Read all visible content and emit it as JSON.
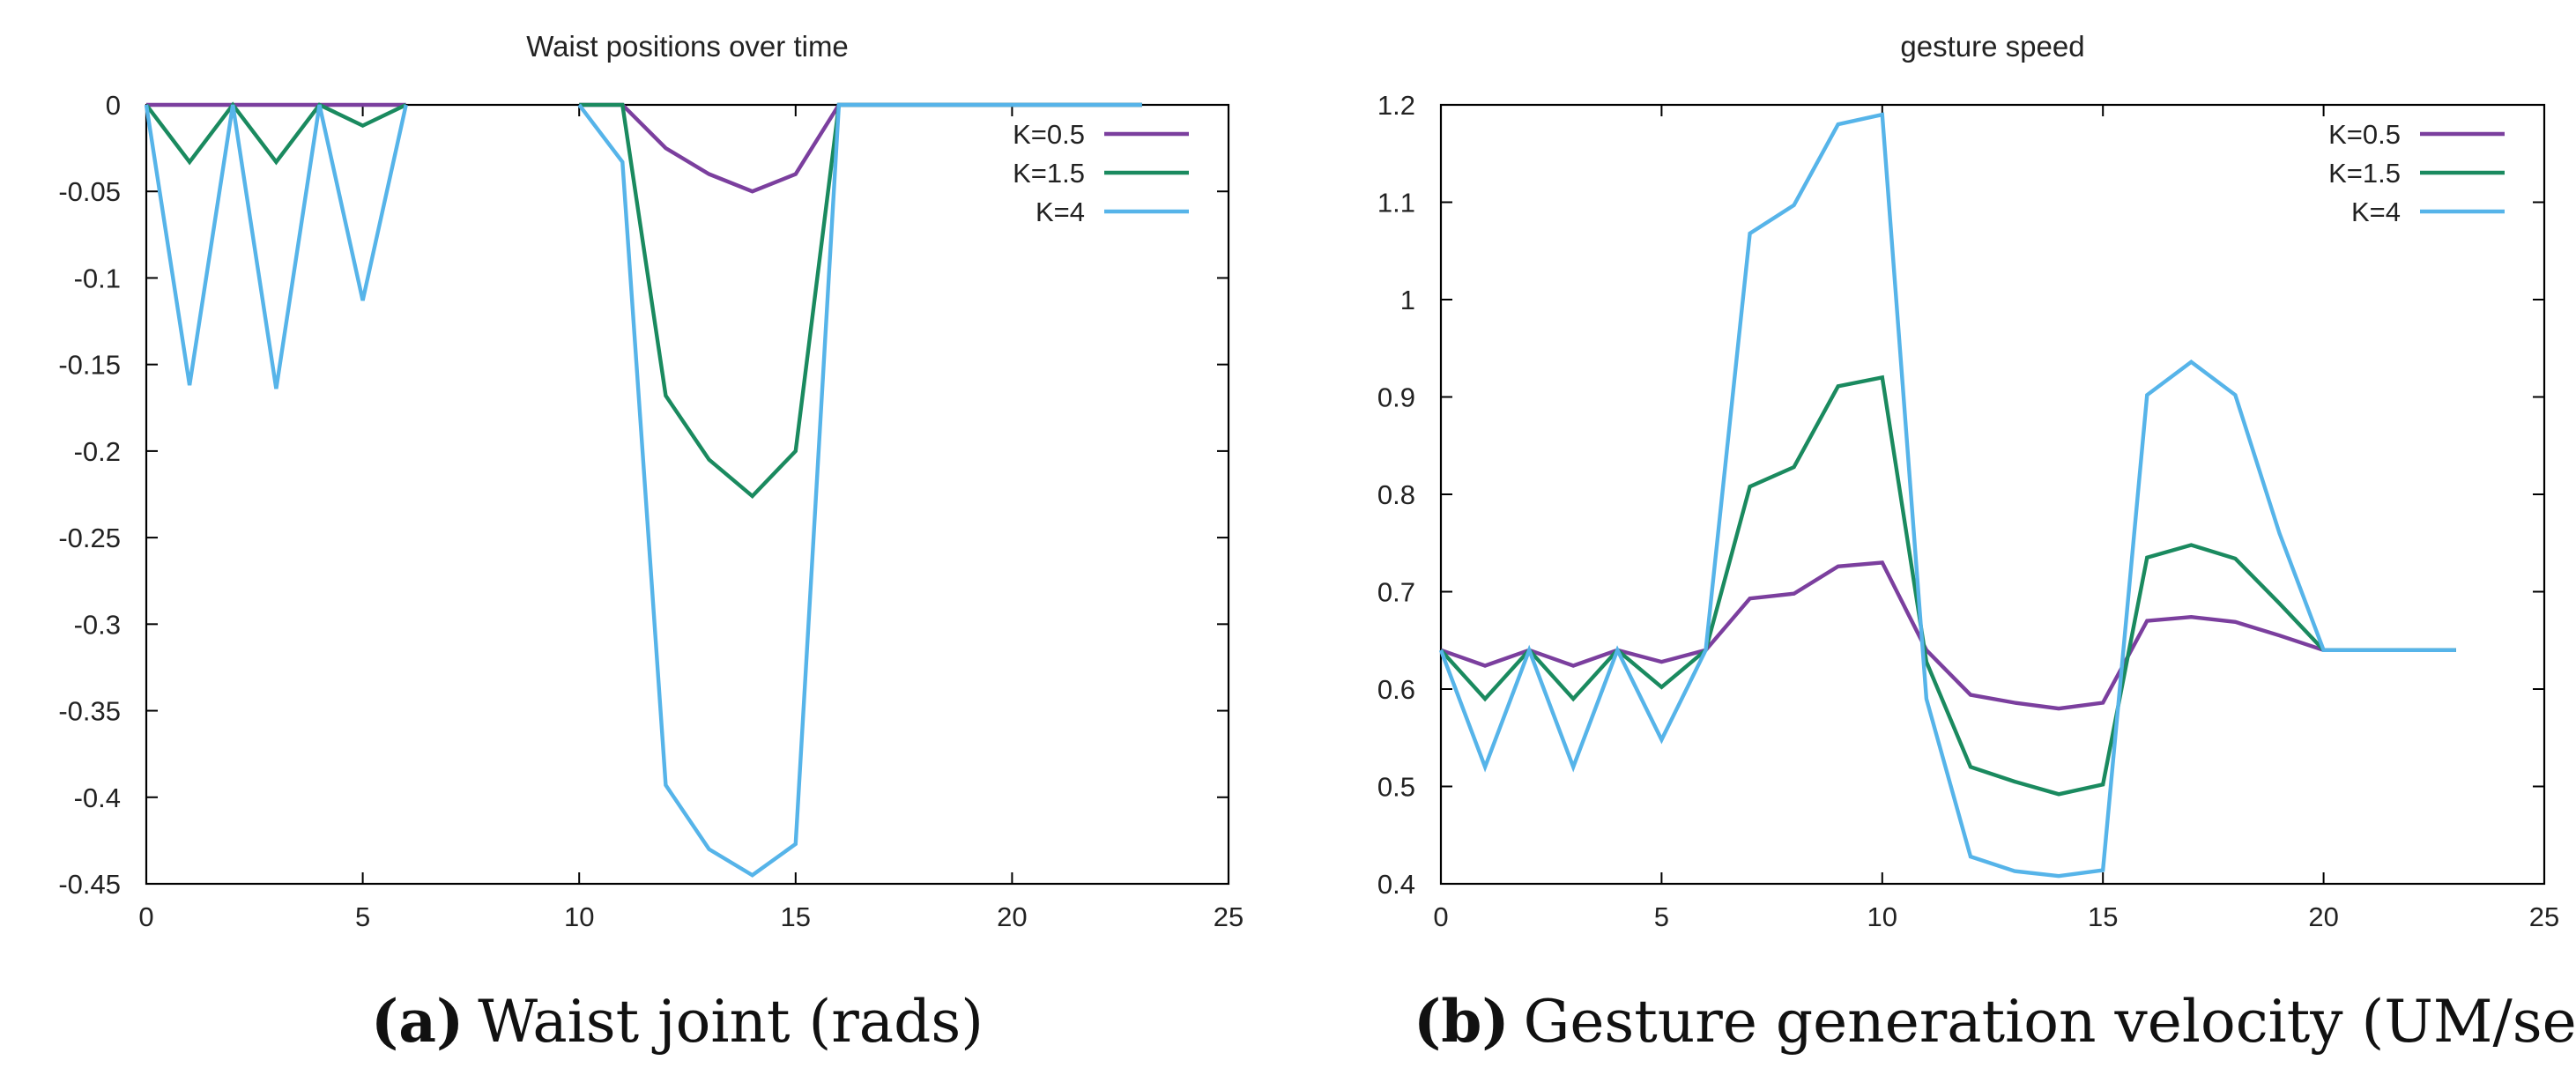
{
  "chart_data": [
    {
      "type": "line",
      "title": "Waist positions over time",
      "xlabel": "",
      "ylabel": "",
      "xlim": [
        0,
        25
      ],
      "ylim": [
        -0.45,
        0
      ],
      "xticks": [
        0,
        5,
        10,
        15,
        20,
        25
      ],
      "yticks": [
        0,
        -0.05,
        -0.1,
        -0.15,
        -0.2,
        -0.25,
        -0.3,
        -0.35,
        -0.4,
        -0.45
      ],
      "grid": false,
      "legend_position": "top-right",
      "series": [
        {
          "name": "K=0.5",
          "color": "#7b3f9e",
          "segments": [
            [
              [
                0,
                0
              ],
              [
                1,
                0
              ],
              [
                2,
                0
              ],
              [
                3,
                0
              ],
              [
                4,
                0
              ],
              [
                5,
                0
              ],
              [
                6,
                0
              ]
            ],
            [
              [
                10,
                0
              ],
              [
                11,
                0
              ],
              [
                12,
                -0.025
              ],
              [
                13,
                -0.04
              ],
              [
                14,
                -0.05
              ],
              [
                15,
                -0.04
              ],
              [
                16,
                0
              ],
              [
                17,
                0
              ],
              [
                18,
                0
              ],
              [
                19,
                0
              ],
              [
                20,
                0
              ],
              [
                21,
                0
              ],
              [
                22,
                0
              ],
              [
                23,
                0
              ]
            ]
          ]
        },
        {
          "name": "K=1.5",
          "color": "#1a8a5f",
          "segments": [
            [
              [
                0,
                0
              ],
              [
                1,
                -0.033
              ],
              [
                2,
                0
              ],
              [
                3,
                -0.033
              ],
              [
                4,
                0
              ],
              [
                5,
                -0.012
              ],
              [
                6,
                0
              ]
            ],
            [
              [
                10,
                0
              ],
              [
                11,
                0
              ],
              [
                12,
                -0.168
              ],
              [
                13,
                -0.205
              ],
              [
                14,
                -0.226
              ],
              [
                15,
                -0.2
              ],
              [
                16,
                0
              ],
              [
                17,
                0
              ],
              [
                18,
                0
              ],
              [
                19,
                0
              ],
              [
                20,
                0
              ],
              [
                21,
                0
              ],
              [
                22,
                0
              ],
              [
                23,
                0
              ]
            ]
          ]
        },
        {
          "name": "K=4",
          "color": "#56b4e9",
          "segments": [
            [
              [
                0,
                0
              ],
              [
                1,
                -0.162
              ],
              [
                2,
                0
              ],
              [
                3,
                -0.164
              ],
              [
                4,
                0
              ],
              [
                5,
                -0.113
              ],
              [
                6,
                0
              ]
            ],
            [
              [
                10,
                0
              ],
              [
                11,
                -0.033
              ],
              [
                12,
                -0.393
              ],
              [
                13,
                -0.43
              ],
              [
                14,
                -0.445
              ],
              [
                15,
                -0.427
              ],
              [
                16,
                0
              ],
              [
                17,
                0
              ],
              [
                18,
                0
              ],
              [
                19,
                0
              ],
              [
                20,
                0
              ],
              [
                21,
                0
              ],
              [
                22,
                0
              ],
              [
                23,
                0
              ]
            ]
          ]
        }
      ]
    },
    {
      "type": "line",
      "title": "gesture speed",
      "xlabel": "",
      "ylabel": "",
      "xlim": [
        0,
        25
      ],
      "ylim": [
        0.4,
        1.2
      ],
      "xticks": [
        0,
        5,
        10,
        15,
        20,
        25
      ],
      "yticks": [
        0.4,
        0.5,
        0.6,
        0.7,
        0.8,
        0.9,
        1,
        1.1,
        1.2
      ],
      "grid": false,
      "legend_position": "top-right",
      "series": [
        {
          "name": "K=0.5",
          "color": "#7b3f9e",
          "segments": [
            [
              [
                0,
                0.64
              ],
              [
                1,
                0.624
              ],
              [
                2,
                0.64
              ],
              [
                3,
                0.624
              ],
              [
                4,
                0.64
              ],
              [
                5,
                0.628
              ],
              [
                6,
                0.64
              ],
              [
                7,
                0.693
              ],
              [
                8,
                0.698
              ],
              [
                9,
                0.726
              ],
              [
                10,
                0.73
              ],
              [
                11,
                0.64
              ],
              [
                12,
                0.594
              ],
              [
                13,
                0.586
              ],
              [
                14,
                0.58
              ],
              [
                15,
                0.586
              ],
              [
                16,
                0.67
              ],
              [
                17,
                0.674
              ],
              [
                18,
                0.669
              ],
              [
                19,
                0.655
              ],
              [
                20,
                0.64
              ],
              [
                21,
                0.64
              ],
              [
                22,
                0.64
              ],
              [
                23,
                0.64
              ]
            ]
          ]
        },
        {
          "name": "K=1.5",
          "color": "#1a8a5f",
          "segments": [
            [
              [
                0,
                0.64
              ],
              [
                1,
                0.59
              ],
              [
                2,
                0.64
              ],
              [
                3,
                0.59
              ],
              [
                4,
                0.64
              ],
              [
                5,
                0.602
              ],
              [
                6,
                0.64
              ],
              [
                7,
                0.808
              ],
              [
                8,
                0.828
              ],
              [
                9,
                0.911
              ],
              [
                10,
                0.92
              ],
              [
                11,
                0.628
              ],
              [
                12,
                0.52
              ],
              [
                13,
                0.505
              ],
              [
                14,
                0.492
              ],
              [
                15,
                0.502
              ],
              [
                16,
                0.735
              ],
              [
                17,
                0.748
              ],
              [
                18,
                0.734
              ],
              [
                19,
                0.688
              ],
              [
                20,
                0.64
              ],
              [
                21,
                0.64
              ],
              [
                22,
                0.64
              ],
              [
                23,
                0.64
              ]
            ]
          ]
        },
        {
          "name": "K=4",
          "color": "#56b4e9",
          "segments": [
            [
              [
                0,
                0.64
              ],
              [
                1,
                0.52
              ],
              [
                2,
                0.64
              ],
              [
                3,
                0.52
              ],
              [
                4,
                0.64
              ],
              [
                5,
                0.548
              ],
              [
                6,
                0.64
              ],
              [
                7,
                1.068
              ],
              [
                8,
                1.097
              ],
              [
                9,
                1.18
              ],
              [
                10,
                1.19
              ],
              [
                11,
                0.59
              ],
              [
                12,
                0.428
              ],
              [
                13,
                0.413
              ],
              [
                14,
                0.408
              ],
              [
                15,
                0.414
              ],
              [
                16,
                0.902
              ],
              [
                17,
                0.936
              ],
              [
                18,
                0.902
              ],
              [
                19,
                0.76
              ],
              [
                20,
                0.64
              ],
              [
                21,
                0.64
              ],
              [
                22,
                0.64
              ],
              [
                23,
                0.64
              ]
            ]
          ]
        }
      ]
    }
  ],
  "captions": {
    "a": {
      "tag": "(a)",
      "text": "Waist joint (rads)"
    },
    "b": {
      "tag": "(b)",
      "text": "Gesture generation velocity (UM/sec)"
    }
  }
}
